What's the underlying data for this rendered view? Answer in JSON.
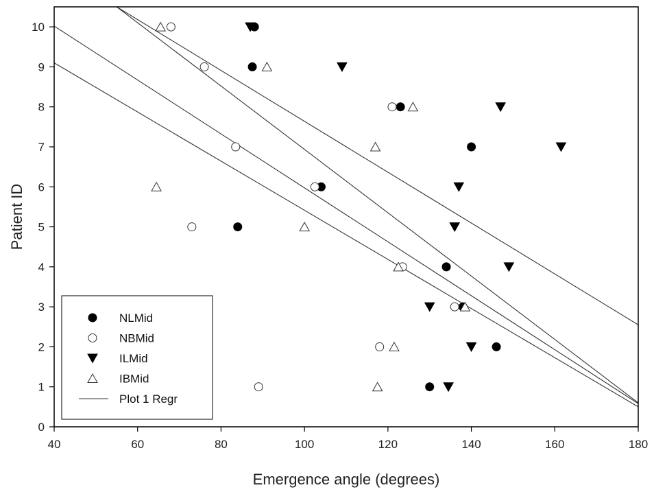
{
  "chart_data": {
    "type": "scatter",
    "title": "",
    "xlabel": "Emergence angle (degrees)",
    "ylabel": "Patient ID",
    "xlim": [
      40,
      180
    ],
    "ylim": [
      0,
      10.5
    ],
    "xticks": [
      40,
      60,
      80,
      100,
      120,
      140,
      160,
      180
    ],
    "yticks": [
      0,
      1,
      2,
      3,
      4,
      5,
      6,
      7,
      8,
      9,
      10
    ],
    "grid": false,
    "legend_position": "bottom-left",
    "series": [
      {
        "name": "NLMid",
        "marker": "filled-circle",
        "points": [
          {
            "x": 130,
            "y": 1
          },
          {
            "x": 146,
            "y": 2
          },
          {
            "x": 138,
            "y": 3
          },
          {
            "x": 134,
            "y": 4
          },
          {
            "x": 84,
            "y": 5
          },
          {
            "x": 104,
            "y": 6
          },
          {
            "x": 140,
            "y": 7
          },
          {
            "x": 123,
            "y": 8
          },
          {
            "x": 87.5,
            "y": 9
          },
          {
            "x": 88,
            "y": 10
          }
        ]
      },
      {
        "name": "NBMid",
        "marker": "open-circle",
        "points": [
          {
            "x": 89,
            "y": 1
          },
          {
            "x": 118,
            "y": 2
          },
          {
            "x": 136,
            "y": 3
          },
          {
            "x": 123.5,
            "y": 4
          },
          {
            "x": 73,
            "y": 5
          },
          {
            "x": 102.5,
            "y": 6
          },
          {
            "x": 83.5,
            "y": 7
          },
          {
            "x": 121,
            "y": 8
          },
          {
            "x": 76,
            "y": 9
          },
          {
            "x": 68,
            "y": 10
          }
        ]
      },
      {
        "name": "ILMid",
        "marker": "filled-triangle-down",
        "points": [
          {
            "x": 134.5,
            "y": 1
          },
          {
            "x": 140,
            "y": 2
          },
          {
            "x": 130,
            "y": 3
          },
          {
            "x": 149,
            "y": 4
          },
          {
            "x": 136,
            "y": 5
          },
          {
            "x": 137,
            "y": 6
          },
          {
            "x": 161.5,
            "y": 7
          },
          {
            "x": 147,
            "y": 8
          },
          {
            "x": 109,
            "y": 9
          },
          {
            "x": 87,
            "y": 10
          }
        ]
      },
      {
        "name": "IBMid",
        "marker": "open-triangle-up",
        "points": [
          {
            "x": 117.5,
            "y": 1
          },
          {
            "x": 121.5,
            "y": 2
          },
          {
            "x": 138.5,
            "y": 3
          },
          {
            "x": 122.5,
            "y": 4
          },
          {
            "x": 100,
            "y": 5
          },
          {
            "x": 64.5,
            "y": 6
          },
          {
            "x": 117,
            "y": 7
          },
          {
            "x": 126,
            "y": 8
          },
          {
            "x": 91,
            "y": 9
          },
          {
            "x": 65.5,
            "y": 10
          }
        ]
      }
    ],
    "regression": {
      "name": "Plot 1 Regr",
      "lines": [
        {
          "x1": 40,
          "y1": 10.02,
          "x2": 180,
          "y2": 0.58
        },
        {
          "x1": 40,
          "y1": 9.1,
          "x2": 180,
          "y2": 0.5
        },
        {
          "x1": 55,
          "y1": 10.5,
          "x2": 180,
          "y2": 2.55
        },
        {
          "x1": 55,
          "y1": 10.5,
          "x2": 180,
          "y2": 0.6
        }
      ]
    }
  }
}
